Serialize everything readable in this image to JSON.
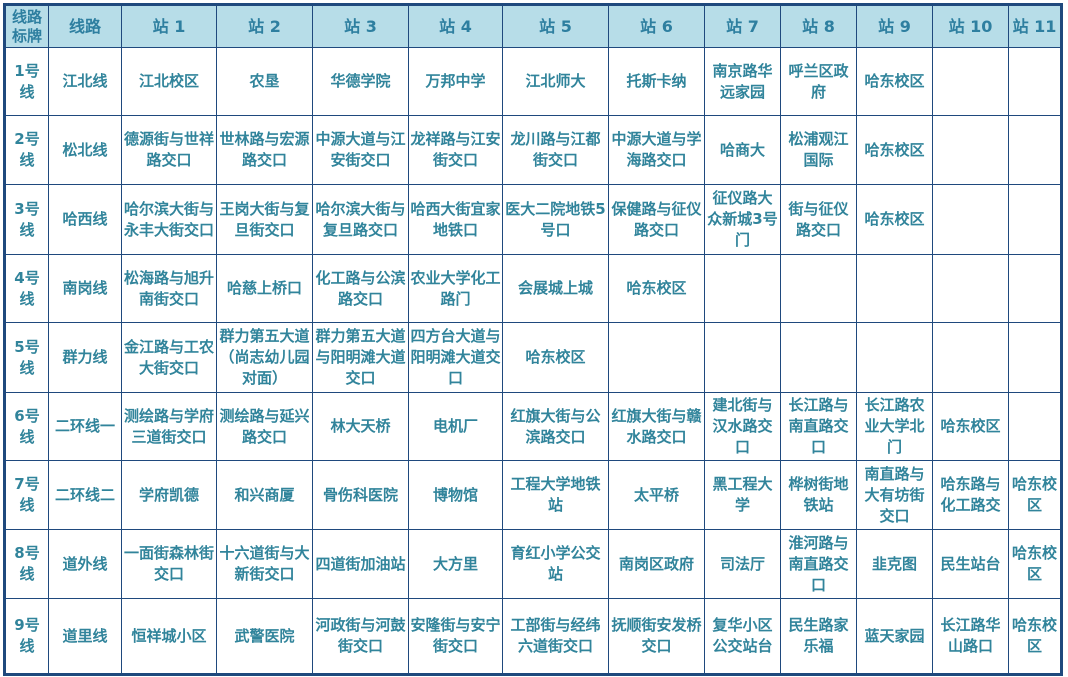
{
  "header": [
    "线路标牌",
    "线路",
    "站 1",
    "站 2",
    "站 3",
    "站 4",
    "站 5",
    "站 6",
    "站 7",
    "站 8",
    "站 9",
    "站 10",
    "站 11"
  ],
  "colors": {
    "header_bg": "#b7dde8",
    "border": "#1f497d",
    "text": "#31849b"
  },
  "rows": [
    {
      "badge": "1号线",
      "line": "江北线",
      "stops": [
        "江北校区",
        "农垦",
        "华德学院",
        "万邦中学",
        "江北师大",
        "托斯卡纳",
        "南京路华远家园",
        "呼兰区政府",
        "哈东校区",
        "",
        ""
      ]
    },
    {
      "badge": "2号线",
      "line": "松北线",
      "stops": [
        "德源街与世祥路交口",
        "世林路与宏源路交口",
        "中源大道与江安街交口",
        "龙祥路与江安街交口",
        "龙川路与江都街交口",
        "中源大道与学海路交口",
        "哈商大",
        "松浦观江国际",
        "哈东校区",
        "",
        ""
      ]
    },
    {
      "badge": "3号线",
      "line": "哈西线",
      "stops": [
        "哈尔滨大街与永丰大街交口",
        "王岗大街与复旦街交口",
        "哈尔滨大街与复旦路交口",
        "哈西大街宜家地铁口",
        "医大二院地铁5号口",
        "保健路与征仪路交口",
        "征仪路大众新城3号门",
        "街与征仪路交口",
        "哈东校区",
        "",
        ""
      ]
    },
    {
      "badge": "4号线",
      "line": "南岗线",
      "stops": [
        "松海路与旭升南街交口",
        "哈慈上桥口",
        "化工路与公滨路交口",
        "农业大学化工路门",
        "会展城上城",
        "哈东校区",
        "",
        "",
        "",
        "",
        ""
      ]
    },
    {
      "badge": "5号线",
      "line": "群力线",
      "stops": [
        "金江路与工农大街交口",
        "群力第五大道（尚志幼儿园对面）",
        "群力第五大道与阳明滩大道交口",
        "四方台大道与阳明滩大道交口",
        "哈东校区",
        "",
        "",
        "",
        "",
        "",
        ""
      ]
    },
    {
      "badge": "6号线",
      "line": "二环线一",
      "stops": [
        "测绘路与学府三道街交口",
        "测绘路与延兴路交口",
        "林大天桥",
        "电机厂",
        "红旗大街与公滨路交口",
        "红旗大街与赣水路交口",
        "建北街与汉水路交口",
        "长江路与南直路交口",
        "长江路农业大学北门",
        "哈东校区",
        ""
      ]
    },
    {
      "badge": "7号线",
      "line": "二环线二",
      "stops": [
        "学府凯德",
        "和兴商厦",
        "骨伤科医院",
        "博物馆",
        "工程大学地铁站",
        "太平桥",
        "黑工程大学",
        "桦树街地铁站",
        "南直路与大有坊街交口",
        "哈东路与化工路交",
        "哈东校区"
      ]
    },
    {
      "badge": "8号线",
      "line": "道外线",
      "stops": [
        "一面街森林街交口",
        "十六道街与大新街交口",
        "四道街加油站",
        "大方里",
        "育红小学公交站",
        "南岗区政府",
        "司法厅",
        "淮河路与南直路交口",
        "韭克图",
        "民生站台",
        "哈东校区"
      ]
    },
    {
      "badge": "9号线",
      "line": "道里线",
      "stops": [
        "恒祥城小区",
        "武警医院",
        "河政街与河鼓街交口",
        "安隆街与安宁街交口",
        "工部街与经纬六道街交口",
        "抚顺街安发桥交口",
        "复华小区公交站台",
        "民生路家乐福",
        "蓝天家园",
        "长江路华山路口",
        "哈东校区"
      ]
    }
  ]
}
